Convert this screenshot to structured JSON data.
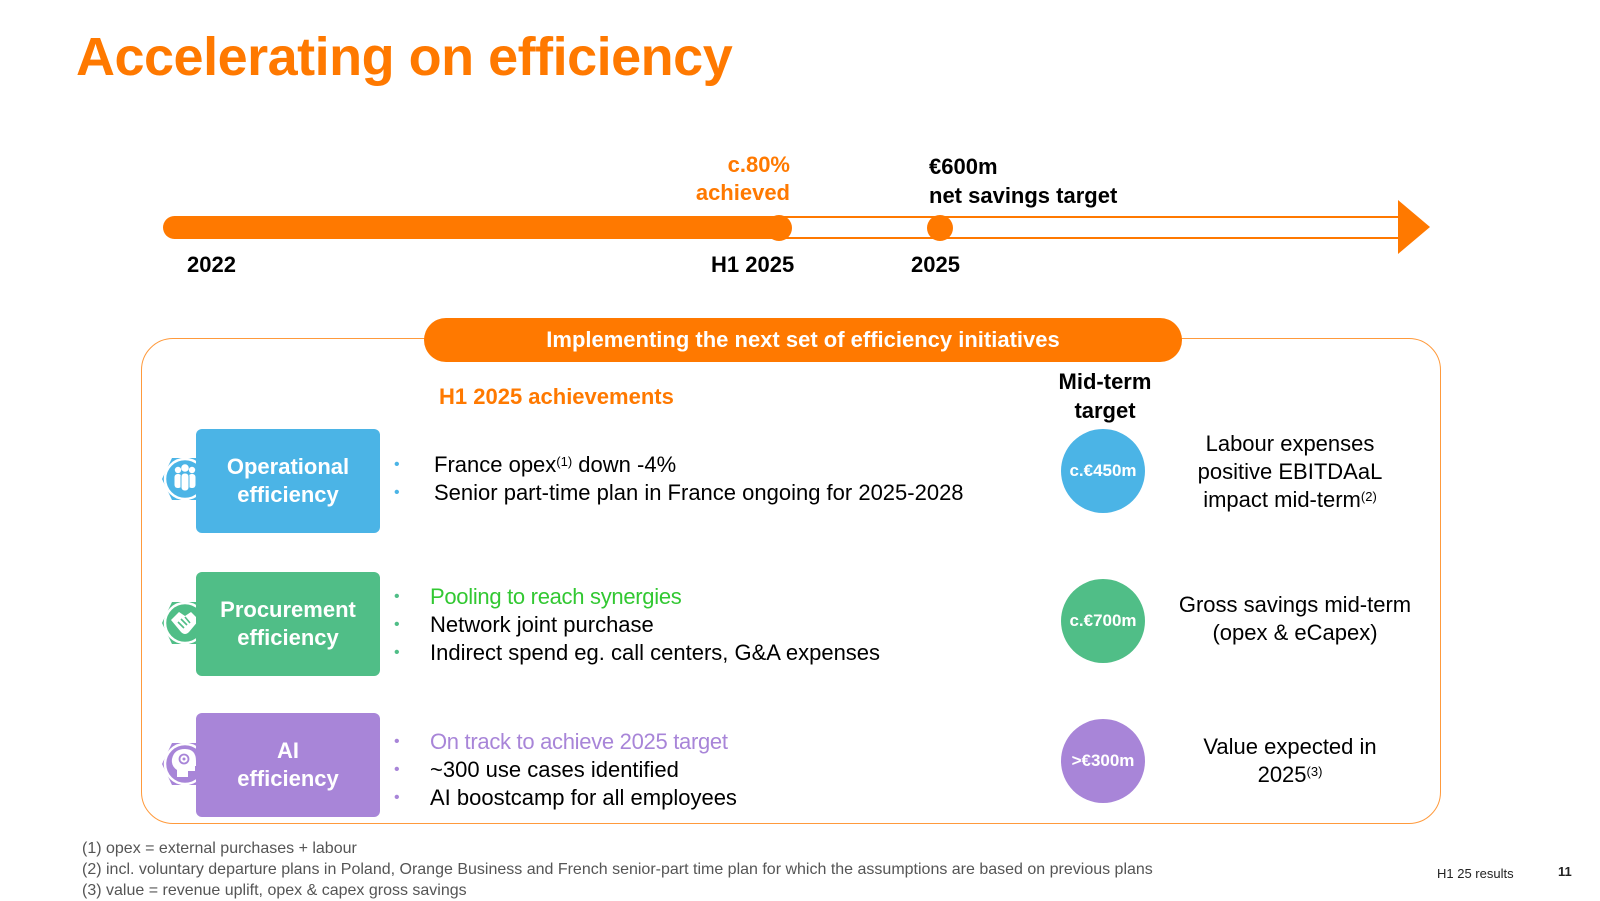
{
  "title": "Accelerating on efficiency",
  "timeline": {
    "achieved_pct": "c.80%",
    "achieved_label": "achieved",
    "target_value": "€600m",
    "target_label": "net savings target",
    "years": [
      "2022",
      "H1 2025",
      "2025"
    ],
    "progress_fraction": 0.8
  },
  "banner": "Implementing the next set of efficiency initiatives",
  "achievements_header": "H1 2025 achievements",
  "midterm_header": [
    "Mid-term",
    "target"
  ],
  "rows": [
    {
      "card": [
        "Operational",
        "efficiency"
      ],
      "icon": "people-group-icon",
      "color": "#4bb4e6",
      "bullets": [
        {
          "text": "France opex",
          "sup": "(1)",
          "tail": " down -4%",
          "highlight": false
        },
        {
          "text": "Senior part-time plan in France ongoing for 2025-2028",
          "sup": "",
          "tail": "",
          "highlight": false
        }
      ],
      "target": "c.€450m",
      "desc": [
        "Labour expenses",
        "positive EBITDAaL",
        "impact mid-term"
      ],
      "desc_sup": "(2)"
    },
    {
      "card": [
        "Procurement",
        "efficiency"
      ],
      "icon": "handshake-icon",
      "color": "#50be87",
      "highlight_color": "#32c832",
      "bullets": [
        {
          "text": "Pooling to reach synergies",
          "highlight": true
        },
        {
          "text": "Network joint purchase",
          "highlight": false
        },
        {
          "text": "Indirect spend eg. call centers, G&A expenses",
          "highlight": false
        }
      ],
      "target": "c.€700m",
      "desc": [
        "Gross savings mid-term",
        "(opex & eCapex)"
      ]
    },
    {
      "card": [
        "AI",
        "efficiency"
      ],
      "icon": "brain-head-icon",
      "color": "#a885d8",
      "bullets": [
        {
          "text": "On track to achieve 2025 target",
          "highlight": true
        },
        {
          "text": "~300 use cases identified",
          "highlight": false
        },
        {
          "text": "AI boostcamp for all employees",
          "highlight": false
        }
      ],
      "target": ">€300m",
      "desc": [
        "Value expected in",
        "2025"
      ],
      "desc_sup": "(3)"
    }
  ],
  "footnotes": [
    "(1) opex = external purchases + labour",
    "(2) incl. voluntary departure plans in Poland, Orange Business and French senior-part time plan for which the assumptions are based on previous plans",
    "(3) value = revenue uplift, opex & capex gross savings"
  ],
  "footer_tag": "H1 25 results",
  "page_number": "11",
  "colors": {
    "brand": "#ff7900"
  }
}
